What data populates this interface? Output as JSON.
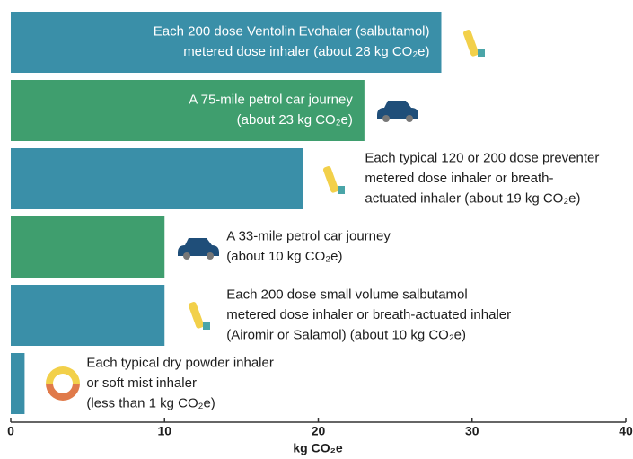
{
  "chart_data": {
    "type": "barh",
    "categories": [
      [
        "Each 200 dose Ventolin Evohaler (salbutamol)",
        "metered dose inhaler (about 28 kg CO₂e)"
      ],
      [
        "A 75-mile petrol car journey",
        "(about 23 kg CO₂e)"
      ],
      [
        "Each typical 120 or 200 dose preventer",
        "metered dose inhaler or breath-",
        "actuated inhaler (about 19 kg CO₂e)"
      ],
      [
        "A 33-mile petrol car journey",
        "(about 10 kg CO₂e)"
      ],
      [
        "Each 200 dose small volume salbutamol",
        "metered dose inhaler or breath-actuated inhaler",
        "(Airomir or Salamol) (about 10 kg CO₂e)"
      ],
      [
        "Each typical dry powder inhaler",
        "or soft mist inhaler",
        "(less than 1 kg CO₂e)"
      ]
    ],
    "values": [
      28,
      23,
      19,
      10,
      10,
      0.9
    ],
    "colors": [
      "#3a8fa8",
      "#3f9e6e",
      "#3a8fa8",
      "#3f9e6e",
      "#3a8fa8",
      "#3a8fa8"
    ],
    "xlabel": "kg CO₂e",
    "xlim": [
      0,
      40
    ],
    "xticks": [
      0,
      10,
      20,
      30,
      40
    ]
  }
}
